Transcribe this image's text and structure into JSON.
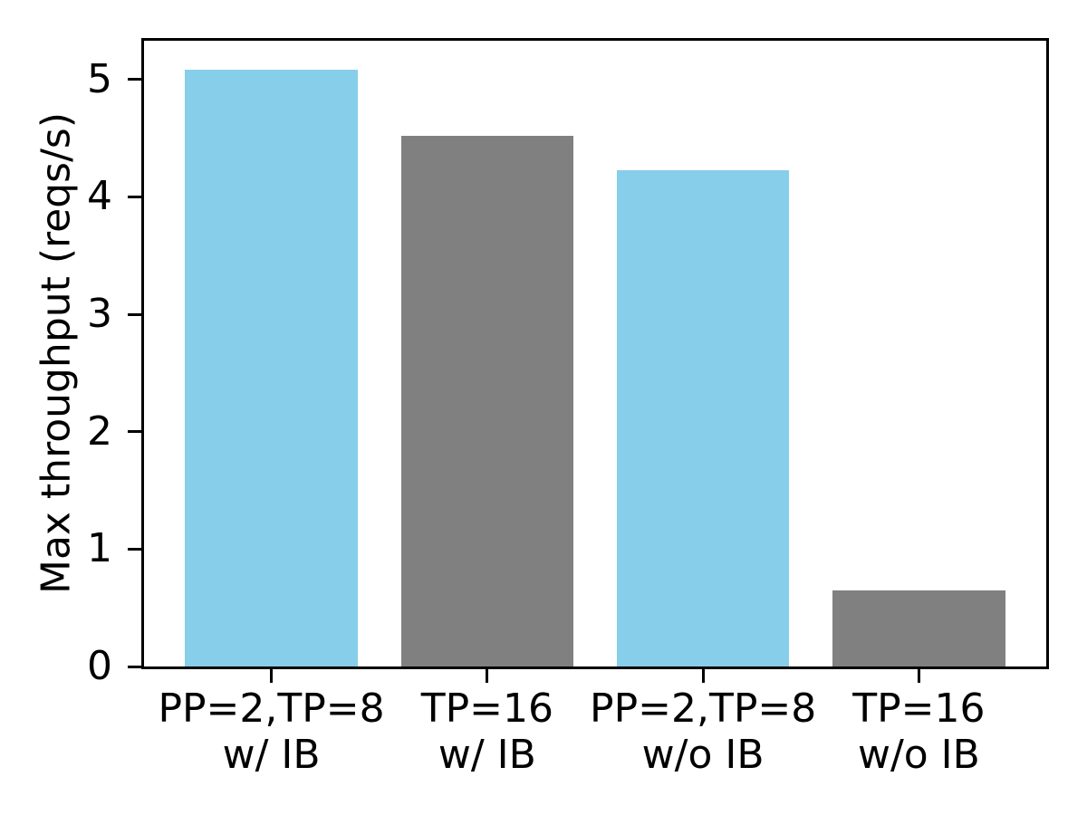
{
  "chart_data": {
    "type": "bar",
    "title": "",
    "xlabel": "",
    "ylabel": "Max throughput (reqs/s)",
    "categories": [
      [
        "PP=2,TP=8",
        "w/ IB"
      ],
      [
        "TP=16",
        "w/ IB"
      ],
      [
        "PP=2,TP=8",
        "w/o IB"
      ],
      [
        "TP=16",
        "w/o IB"
      ]
    ],
    "values": [
      5.08,
      4.52,
      4.23,
      0.65
    ],
    "bar_colors": [
      "#87ceeb",
      "#808080",
      "#87ceeb",
      "#808080"
    ],
    "yticks": [
      0,
      1,
      2,
      3,
      4,
      5
    ],
    "ylim": [
      0,
      5.33
    ],
    "xlim": [
      -0.59,
      3.59
    ],
    "bar_width": 0.8,
    "grid": false,
    "legend": "none",
    "spine_color": "#000000",
    "text_color": "#000000"
  }
}
